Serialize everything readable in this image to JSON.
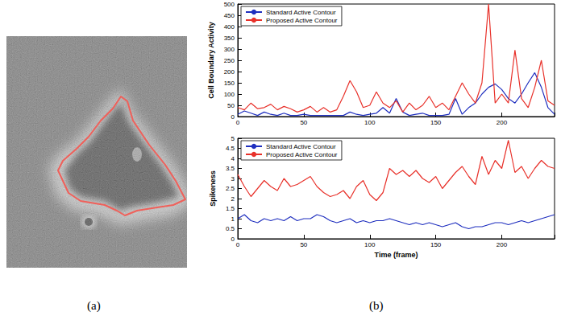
{
  "panel_labels": [
    "(a)",
    "(b)"
  ],
  "chart_data": [
    {
      "type": "line",
      "ylabel": "Cell Boundary Activity",
      "x": [
        0,
        5,
        10,
        15,
        20,
        25,
        30,
        35,
        40,
        45,
        50,
        55,
        60,
        65,
        70,
        75,
        80,
        85,
        90,
        95,
        100,
        105,
        110,
        115,
        120,
        125,
        130,
        135,
        140,
        145,
        150,
        155,
        160,
        165,
        170,
        175,
        180,
        185,
        190,
        195,
        200,
        205,
        210,
        215,
        220,
        225,
        230,
        235,
        240
      ],
      "series": [
        {
          "name": "Standard Active Contour",
          "color": "#1f2fbf",
          "values": [
            10,
            25,
            15,
            5,
            20,
            10,
            5,
            15,
            5,
            5,
            10,
            5,
            5,
            5,
            5,
            5,
            5,
            20,
            10,
            5,
            10,
            15,
            40,
            15,
            80,
            20,
            5,
            10,
            15,
            5,
            5,
            5,
            10,
            80,
            10,
            40,
            60,
            100,
            130,
            145,
            120,
            80,
            60,
            100,
            150,
            195,
            130,
            40,
            10
          ]
        },
        {
          "name": "Proposed Active Contour",
          "color": "#e8312a",
          "values": [
            40,
            30,
            60,
            35,
            40,
            55,
            30,
            45,
            35,
            20,
            30,
            45,
            20,
            40,
            20,
            30,
            90,
            160,
            110,
            40,
            50,
            110,
            60,
            40,
            70,
            20,
            60,
            30,
            50,
            90,
            40,
            60,
            30,
            90,
            150,
            100,
            60,
            150,
            500,
            60,
            100,
            60,
            295,
            80,
            40,
            130,
            250,
            70,
            50
          ]
        }
      ],
      "xlim": [
        0,
        240
      ],
      "xticks": [
        0,
        50,
        100,
        150,
        200
      ],
      "ylim": [
        0,
        500
      ],
      "yticks": [
        0,
        50,
        100,
        150,
        200,
        250,
        300,
        350,
        400,
        450,
        500
      ],
      "legend": "upper left",
      "grid": false
    },
    {
      "type": "line",
      "ylabel": "Spikeness",
      "xlabel": "Time (frame)",
      "x": [
        0,
        5,
        10,
        15,
        20,
        25,
        30,
        35,
        40,
        45,
        50,
        55,
        60,
        65,
        70,
        75,
        80,
        85,
        90,
        95,
        100,
        105,
        110,
        115,
        120,
        125,
        130,
        135,
        140,
        145,
        150,
        155,
        160,
        165,
        170,
        175,
        180,
        185,
        190,
        195,
        200,
        205,
        210,
        215,
        220,
        225,
        230,
        235,
        240
      ],
      "series": [
        {
          "name": "Standard Active Contour",
          "color": "#1f2fbf",
          "values": [
            1.0,
            1.2,
            0.9,
            0.8,
            1.0,
            0.9,
            1.0,
            0.9,
            1.1,
            0.9,
            1.0,
            1.0,
            1.2,
            1.1,
            0.9,
            0.8,
            0.9,
            1.0,
            0.8,
            0.9,
            0.8,
            0.9,
            0.9,
            1.0,
            0.9,
            0.8,
            0.7,
            0.8,
            0.7,
            0.8,
            0.7,
            0.6,
            0.7,
            0.8,
            0.6,
            0.5,
            0.6,
            0.6,
            0.7,
            0.8,
            0.8,
            0.7,
            0.8,
            0.9,
            0.8,
            0.9,
            1.0,
            1.1,
            1.2
          ]
        },
        {
          "name": "Proposed Active Contour",
          "color": "#e8312a",
          "values": [
            3.2,
            2.6,
            2.1,
            2.5,
            2.9,
            2.6,
            2.4,
            3.0,
            2.6,
            2.7,
            2.9,
            3.1,
            2.6,
            2.3,
            2.1,
            2.2,
            2.4,
            2.0,
            2.6,
            2.9,
            2.2,
            1.9,
            2.3,
            3.5,
            3.2,
            3.4,
            3.1,
            3.4,
            3.0,
            2.8,
            3.1,
            2.5,
            2.9,
            3.3,
            3.6,
            3.1,
            2.7,
            4.1,
            3.2,
            3.9,
            3.5,
            4.9,
            3.3,
            3.6,
            3.0,
            3.5,
            3.9,
            3.6,
            3.5
          ]
        }
      ],
      "xlim": [
        0,
        240
      ],
      "xticks": [
        0,
        50,
        100,
        150,
        200
      ],
      "ylim": [
        0,
        5
      ],
      "yticks": [
        0,
        0.5,
        1,
        1.5,
        2,
        2.5,
        3,
        3.5,
        4,
        4.5,
        5
      ],
      "legend": "upper left",
      "grid": false
    }
  ]
}
